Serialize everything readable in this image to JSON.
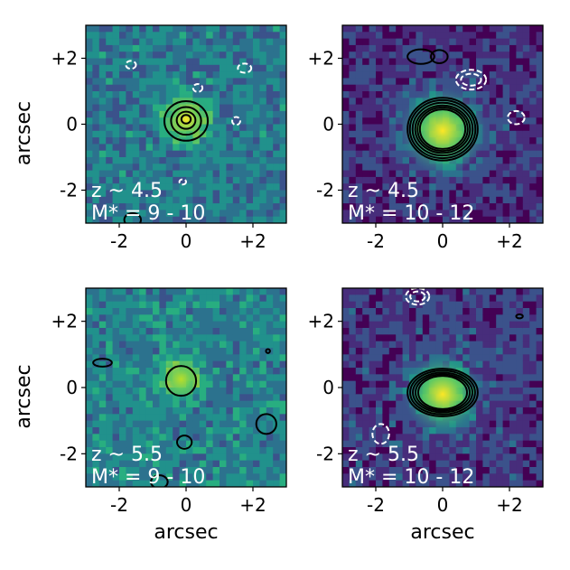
{
  "figure": {
    "axis_label": "arcsec",
    "tick_labels": [
      "-2",
      "0",
      "+2"
    ]
  },
  "chart_data": [
    {
      "type": "heatmap",
      "panel": "top-left",
      "xlim": [
        -3,
        3
      ],
      "ylim": [
        -3,
        3
      ],
      "xticks": [
        -2,
        0,
        2
      ],
      "yticks": [
        -2,
        0,
        2
      ],
      "xlabel": "",
      "ylabel": "arcsec",
      "colormap": "viridis",
      "label_line1": "z ~ 4.5",
      "label_line2": "M* = 9 - 10",
      "source": {
        "x": 0.0,
        "y": 0.15,
        "peak": "yellow",
        "extent_arcsec": 0.6
      },
      "contours_positive": [
        {
          "cx": 0.0,
          "cy": 0.1,
          "rx": 0.65,
          "ry": 0.6
        },
        {
          "cx": 0.0,
          "cy": 0.1,
          "rx": 0.45,
          "ry": 0.42
        },
        {
          "cx": 0.0,
          "cy": 0.12,
          "rx": 0.28,
          "ry": 0.26
        },
        {
          "cx": 0.0,
          "cy": 0.15,
          "rx": 0.14,
          "ry": 0.13
        },
        {
          "cx": -1.6,
          "cy": -2.9,
          "rx": 0.25,
          "ry": 0.2
        }
      ],
      "contours_negative": [
        {
          "cx": -1.65,
          "cy": 1.8,
          "rx": 0.15,
          "ry": 0.12
        },
        {
          "cx": 1.75,
          "cy": 1.7,
          "rx": 0.2,
          "ry": 0.14
        },
        {
          "cx": 0.35,
          "cy": 1.1,
          "rx": 0.14,
          "ry": 0.12
        },
        {
          "cx": 1.5,
          "cy": 0.1,
          "rx": 0.12,
          "ry": 0.12
        },
        {
          "cx": -0.1,
          "cy": -1.75,
          "rx": 0.1,
          "ry": 0.08
        }
      ]
    },
    {
      "type": "heatmap",
      "panel": "top-right",
      "xlim": [
        -3,
        3
      ],
      "ylim": [
        -3,
        3
      ],
      "xticks": [
        -2,
        0,
        2
      ],
      "yticks": [
        -2,
        0,
        2
      ],
      "xlabel": "",
      "ylabel": "",
      "colormap": "viridis",
      "label_line1": "z ~ 4.5",
      "label_line2": "M* = 10 - 12",
      "source": {
        "x": 0.0,
        "y": -0.2,
        "peak": "yellow",
        "extent_arcsec": 1.0
      },
      "contours_positive": [
        {
          "cx": 0.0,
          "cy": -0.15,
          "rx": 1.05,
          "ry": 0.95
        },
        {
          "cx": 0.0,
          "cy": -0.15,
          "rx": 0.98,
          "ry": 0.88
        },
        {
          "cx": 0.0,
          "cy": -0.15,
          "rx": 0.9,
          "ry": 0.8
        },
        {
          "cx": 0.0,
          "cy": -0.15,
          "rx": 0.82,
          "ry": 0.72
        },
        {
          "cx": 0.0,
          "cy": -0.15,
          "rx": 0.75,
          "ry": 0.66
        },
        {
          "cx": 0.0,
          "cy": -0.15,
          "rx": 0.68,
          "ry": 0.6
        },
        {
          "cx": -0.65,
          "cy": 2.05,
          "rx": 0.4,
          "ry": 0.22
        },
        {
          "cx": -0.1,
          "cy": 2.05,
          "rx": 0.25,
          "ry": 0.2
        }
      ],
      "contours_negative": [
        {
          "cx": 0.85,
          "cy": 1.35,
          "rx": 0.45,
          "ry": 0.3
        },
        {
          "cx": 0.85,
          "cy": 1.35,
          "rx": 0.3,
          "ry": 0.18
        },
        {
          "cx": 2.2,
          "cy": 0.2,
          "rx": 0.25,
          "ry": 0.2
        }
      ]
    },
    {
      "type": "heatmap",
      "panel": "bottom-left",
      "xlim": [
        -3,
        3
      ],
      "ylim": [
        -3,
        3
      ],
      "xticks": [
        -2,
        0,
        2
      ],
      "yticks": [
        -2,
        0,
        2
      ],
      "xlabel": "arcsec",
      "ylabel": "arcsec",
      "colormap": "viridis",
      "label_line1": "z ~ 5.5",
      "label_line2": "M* = 9 - 10",
      "source": {
        "x": -0.15,
        "y": 0.25,
        "peak": "green-yellow",
        "extent_arcsec": 0.5
      },
      "contours_positive": [
        {
          "cx": -0.15,
          "cy": 0.2,
          "rx": 0.45,
          "ry": 0.45
        },
        {
          "cx": -2.5,
          "cy": 0.75,
          "rx": 0.28,
          "ry": 0.12
        },
        {
          "cx": 2.45,
          "cy": 1.1,
          "rx": 0.06,
          "ry": 0.06
        },
        {
          "cx": -0.05,
          "cy": -1.65,
          "rx": 0.22,
          "ry": 0.2
        },
        {
          "cx": 2.4,
          "cy": -1.1,
          "rx": 0.3,
          "ry": 0.3
        },
        {
          "cx": -0.8,
          "cy": -2.85,
          "rx": 0.25,
          "ry": 0.2
        }
      ],
      "contours_negative": []
    },
    {
      "type": "heatmap",
      "panel": "bottom-right",
      "xlim": [
        -3,
        3
      ],
      "ylim": [
        -3,
        3
      ],
      "xticks": [
        -2,
        0,
        2
      ],
      "yticks": [
        -2,
        0,
        2
      ],
      "xlabel": "arcsec",
      "ylabel": "",
      "colormap": "viridis",
      "label_line1": "z ~ 5.5",
      "label_line2": "M* = 10 - 12",
      "source": {
        "x": 0.0,
        "y": -0.2,
        "peak": "yellow",
        "extent_arcsec": 0.9
      },
      "contours_positive": [
        {
          "cx": 0.0,
          "cy": -0.15,
          "rx": 1.05,
          "ry": 0.72
        },
        {
          "cx": 0.0,
          "cy": -0.15,
          "rx": 0.97,
          "ry": 0.66
        },
        {
          "cx": 0.0,
          "cy": -0.15,
          "rx": 0.89,
          "ry": 0.6
        },
        {
          "cx": 0.0,
          "cy": -0.15,
          "rx": 0.81,
          "ry": 0.55
        },
        {
          "cx": 0.0,
          "cy": -0.15,
          "rx": 0.73,
          "ry": 0.5
        },
        {
          "cx": 2.3,
          "cy": 2.15,
          "rx": 0.1,
          "ry": 0.06
        }
      ],
      "contours_negative": [
        {
          "cx": -0.75,
          "cy": 2.75,
          "rx": 0.35,
          "ry": 0.25
        },
        {
          "cx": -0.75,
          "cy": 2.75,
          "rx": 0.22,
          "ry": 0.15
        },
        {
          "cx": -1.85,
          "cy": -1.4,
          "rx": 0.25,
          "ry": 0.3
        }
      ]
    }
  ]
}
